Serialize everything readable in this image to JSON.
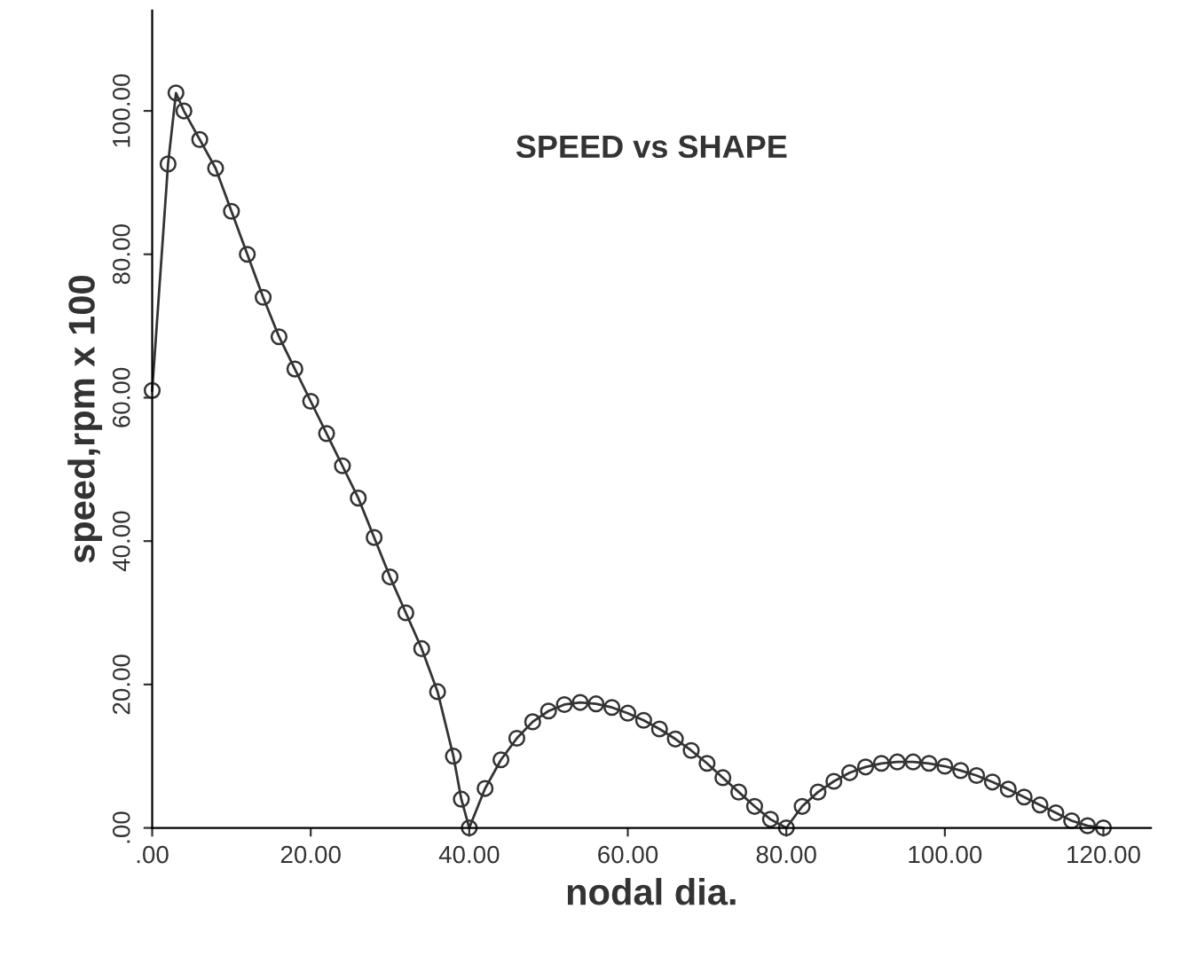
{
  "chart_data": {
    "type": "line",
    "title": "SPEED vs SHAPE",
    "xlabel": "nodal dia.",
    "ylabel": "speed,rpm x 100",
    "x": [
      0,
      2,
      3,
      4,
      6,
      8,
      10,
      12,
      14,
      16,
      18,
      20,
      22,
      24,
      26,
      28,
      30,
      32,
      34,
      36,
      38,
      39,
      40,
      42,
      44,
      46,
      48,
      50,
      52,
      54,
      56,
      58,
      60,
      62,
      64,
      66,
      68,
      70,
      72,
      74,
      76,
      78,
      80,
      82,
      84,
      86,
      88,
      90,
      92,
      94,
      96,
      98,
      100,
      102,
      104,
      106,
      108,
      110,
      112,
      114,
      116,
      118,
      120
    ],
    "series": [
      {
        "color": "#333333",
        "values": [
          61,
          92.6,
          102.5,
          100,
          96,
          92,
          86,
          80,
          74,
          68.5,
          64,
          59.5,
          55,
          50.5,
          46,
          40.5,
          35,
          30,
          25,
          19,
          10,
          4,
          0,
          5.5,
          9.5,
          12.5,
          14.8,
          16.3,
          17.2,
          17.5,
          17.3,
          16.8,
          16,
          15,
          13.8,
          12.4,
          10.8,
          9,
          7,
          5,
          3,
          1.2,
          0,
          3,
          5,
          6.5,
          7.7,
          8.5,
          9,
          9.2,
          9.2,
          9,
          8.6,
          8,
          7.3,
          6.4,
          5.4,
          4.3,
          3.2,
          2.1,
          1,
          0.3,
          0
        ]
      }
    ],
    "marker": "circle",
    "line_style": "solid",
    "grid": false,
    "legend": false,
    "xlim": [
      0,
      126
    ],
    "ylim": [
      0,
      114
    ],
    "xticks": [
      {
        "value": 0,
        "label": ".00"
      },
      {
        "value": 20,
        "label": "20.00"
      },
      {
        "value": 40,
        "label": "40.00"
      },
      {
        "value": 60,
        "label": "60.00"
      },
      {
        "value": 80,
        "label": "80.00"
      },
      {
        "value": 100,
        "label": "100.00"
      },
      {
        "value": 120,
        "label": "120.00"
      }
    ],
    "yticks": [
      {
        "value": 0,
        "label": ".00"
      },
      {
        "value": 20,
        "label": "20.00"
      },
      {
        "value": 40,
        "label": "40.00"
      },
      {
        "value": 60,
        "label": "60.00"
      },
      {
        "value": 80,
        "label": "80.00"
      },
      {
        "value": 100,
        "label": "100.00"
      }
    ]
  }
}
